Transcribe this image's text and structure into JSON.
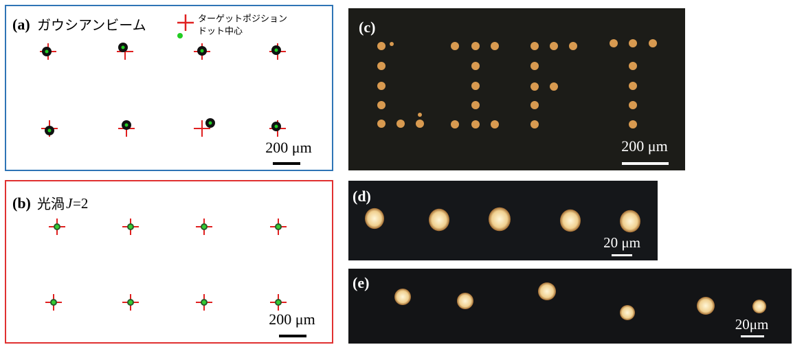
{
  "panel_a": {
    "label": "(a)",
    "title": "ガウシアンビーム",
    "legend_target": "ターゲットポジション",
    "legend_dot": "ドット中心",
    "scale": "200 μm"
  },
  "panel_b": {
    "label": "(b)",
    "title": "光渦",
    "title_var": "J",
    "title_eq": "=2",
    "scale": "200 μm"
  },
  "panel_c": {
    "label": "(c)",
    "scale": "200 μm"
  },
  "panel_d": {
    "label": "(d)",
    "scale": "20 μm"
  },
  "panel_e": {
    "label": "(e)",
    "scale": "20μm"
  }
}
